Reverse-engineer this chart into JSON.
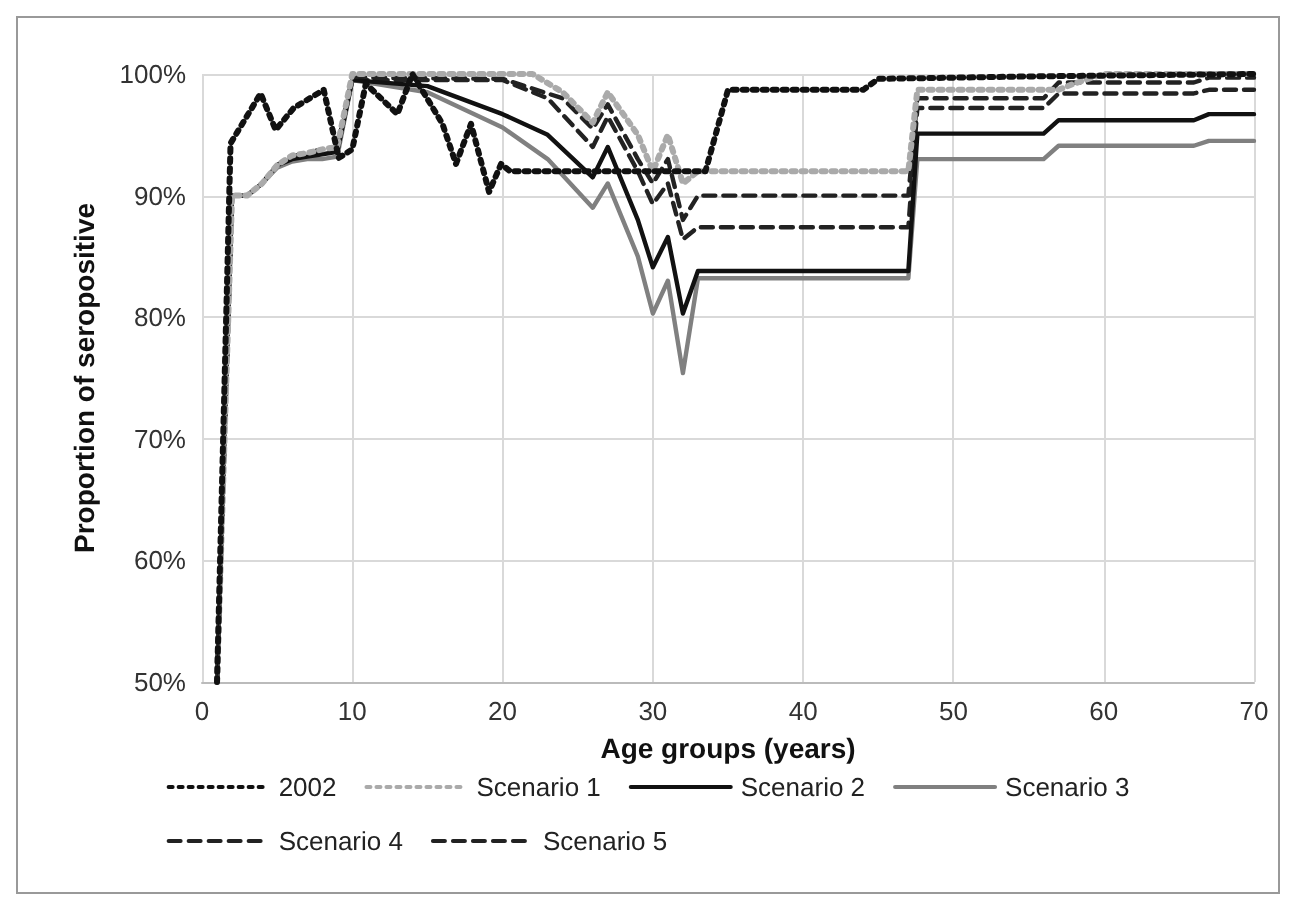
{
  "chart_data": {
    "type": "line",
    "xlabel": "Age groups (years)",
    "ylabel": "Proportion of seropositive",
    "xlim": [
      0,
      70
    ],
    "xticks": [
      0,
      10,
      20,
      30,
      40,
      50,
      60,
      70
    ],
    "ylim": [
      50,
      100
    ],
    "yticks": [
      {
        "value": 50,
        "label": "50%"
      },
      {
        "value": 60,
        "label": "60%"
      },
      {
        "value": 70,
        "label": "70%"
      },
      {
        "value": 80,
        "label": "80%"
      },
      {
        "value": 90,
        "label": "90%"
      },
      {
        "value": 100,
        "label": "100%"
      }
    ],
    "grid": true,
    "legend": "bottom",
    "marker": "none",
    "series": [
      {
        "name": "2002",
        "color": "#111111",
        "line_style": "dotted",
        "x": [
          1,
          1.9,
          3.9,
          4.9,
          6.1,
          8.1,
          9.1,
          10,
          10.9,
          13,
          14,
          16,
          16.9,
          17.9,
          19.1,
          19.9,
          20.5,
          33.5,
          35,
          44,
          45,
          55,
          70
        ],
        "values": [
          50,
          94.3,
          98.4,
          95.4,
          97.2,
          98.7,
          93.1,
          93.8,
          99.2,
          96.7,
          100,
          95.9,
          92.6,
          95.9,
          90.3,
          92.6,
          92,
          92,
          98.7,
          98.7,
          99.6,
          99.8,
          100
        ]
      },
      {
        "name": "Scenario 1",
        "color": "#aaaaaa",
        "line_style": "dotted",
        "x": [
          1,
          2,
          3,
          4,
          5,
          6,
          7,
          8,
          9,
          10,
          22,
          24,
          26,
          27,
          29,
          30,
          31,
          32,
          33,
          47,
          47.6,
          57,
          58,
          60,
          70
        ],
        "values": [
          50,
          90,
          90,
          91,
          92.5,
          93.3,
          93.5,
          93.8,
          94,
          100,
          100,
          98.5,
          96,
          98.5,
          95,
          92,
          95,
          91,
          92,
          92,
          98.7,
          98.7,
          99.2,
          100,
          100
        ]
      },
      {
        "name": "Scenario 2",
        "color": "#111111",
        "line_style": "solid",
        "x": [
          1,
          2,
          3,
          4,
          5,
          6,
          7,
          8,
          9,
          10,
          15,
          20,
          23,
          26,
          27,
          29,
          30,
          31,
          32,
          33,
          47,
          47.6,
          56,
          57,
          66,
          67,
          70
        ],
        "values": [
          50,
          90,
          90,
          91,
          92.5,
          93,
          93.2,
          93.4,
          93.6,
          99.5,
          99,
          96.7,
          95,
          91.5,
          94,
          88,
          84.1,
          86.6,
          80.3,
          83.8,
          83.8,
          95.1,
          95.1,
          96.2,
          96.2,
          96.7,
          96.7
        ]
      },
      {
        "name": "Scenario 3",
        "color": "#808080",
        "line_style": "solid",
        "x": [
          1,
          2,
          3,
          4,
          5,
          6,
          7,
          8,
          9,
          10,
          15,
          20,
          23,
          26,
          27,
          29,
          30,
          31,
          32,
          33,
          47,
          47.6,
          56,
          57,
          66,
          67,
          70
        ],
        "values": [
          50,
          90,
          90,
          91,
          92.3,
          92.8,
          93,
          93,
          93.2,
          99.5,
          98.5,
          95.6,
          93,
          89,
          91,
          85,
          80.3,
          83,
          75.4,
          83.2,
          83.2,
          93,
          93,
          94.1,
          94.1,
          94.5,
          94.5
        ]
      },
      {
        "name": "Scenario 4",
        "color": "#222222",
        "line_style": "dashed",
        "x": [
          1,
          2,
          3,
          4,
          5,
          6,
          7,
          8,
          9,
          10,
          20,
          23,
          26,
          27,
          29,
          30,
          31,
          32,
          33,
          47,
          47.6,
          56,
          57,
          66,
          67,
          70
        ],
        "values": [
          50,
          90,
          90,
          91,
          92.5,
          93.2,
          93.5,
          93.8,
          94,
          99.5,
          99.5,
          98,
          94,
          96.5,
          92,
          89.3,
          91,
          86.4,
          87.4,
          87.4,
          97.2,
          97.2,
          98.4,
          98.4,
          98.7,
          98.7
        ]
      },
      {
        "name": "Scenario 5",
        "color": "#222222",
        "line_style": "dashed",
        "x": [
          1,
          2,
          3,
          4,
          5,
          6,
          7,
          8,
          9,
          10,
          20,
          24,
          26,
          27,
          29,
          30,
          31,
          32,
          33,
          47,
          47.6,
          56,
          57,
          66,
          67,
          70
        ],
        "values": [
          50,
          90,
          90,
          91,
          92.5,
          93.2,
          93.5,
          93.8,
          94,
          99.7,
          99.6,
          98,
          95.5,
          97.5,
          93,
          91,
          93,
          88,
          90,
          90,
          98,
          98,
          99.3,
          99.3,
          99.7,
          99.7
        ]
      }
    ]
  }
}
